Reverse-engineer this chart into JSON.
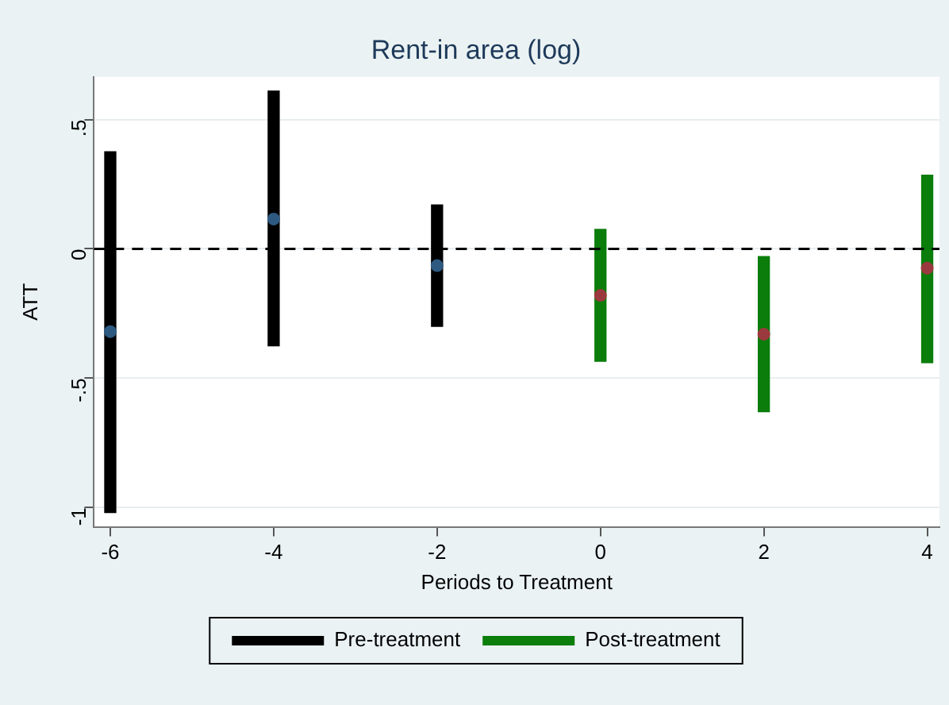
{
  "chart_data": {
    "type": "bar",
    "title": "Rent-in area (log)",
    "xlabel": "Periods to Treatment",
    "ylabel": "ATT",
    "series": [
      {
        "name": "Pre-treatment",
        "color": "#000000",
        "x": [
          -6,
          -4,
          -2
        ],
        "base": [
          -1.02,
          -0.375,
          -0.3
        ],
        "values": [
          1.395,
          0.985,
          0.47
        ]
      },
      {
        "name": "Post-treatment",
        "color": "#0a7d0a",
        "x": [
          0,
          2,
          4
        ],
        "base": [
          -0.435,
          -0.63,
          -0.44
        ],
        "values": [
          0.51,
          0.6,
          0.725
        ]
      },
      {
        "type": "scatter",
        "color": "#2e5a82",
        "x": [
          -6,
          -4,
          -2
        ],
        "values": [
          -0.32,
          0.115,
          -0.065
        ]
      },
      {
        "type": "scatter",
        "color": "#9b3a3e",
        "x": [
          0,
          2,
          4
        ],
        "values": [
          -0.18,
          -0.33,
          -0.075
        ]
      }
    ],
    "xlim": [
      -6.2,
      4.15
    ],
    "xticks": [
      -6,
      -4,
      -2,
      0,
      2,
      4
    ],
    "ylim": [
      -1.075,
      0.665
    ],
    "yticks": [
      {
        "value": -1,
        "label": "-1"
      },
      {
        "value": -0.5,
        "label": "-.5"
      },
      {
        "value": 0,
        "label": "0"
      },
      {
        "value": 0.5,
        "label": ".5"
      }
    ],
    "ref_lines": [
      {
        "axis": "y",
        "value": 0,
        "color": "#000000",
        "line_style": "dashed"
      }
    ],
    "grid": "y",
    "legend": "bottom",
    "marker": "circle"
  }
}
